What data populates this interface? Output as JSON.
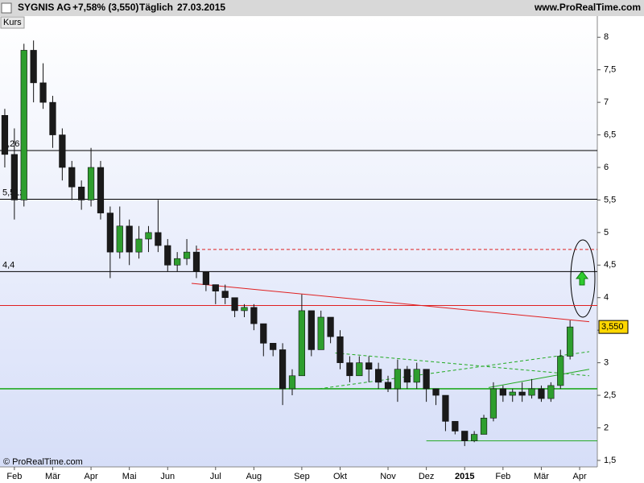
{
  "chart_data": {
    "type": "candlestick",
    "title": "SYGNIS AG",
    "change": "+7,58% (3,550)",
    "period": "Täglich",
    "date": "27.03.2015",
    "source": "www.ProRealTime.com",
    "panel_label": "Kurs",
    "copyright": "© ProRealTime.com",
    "categories": [
      null,
      "Feb",
      null,
      null,
      null,
      "Mär",
      null,
      null,
      null,
      "Apr",
      null,
      null,
      null,
      "Mai",
      null,
      null,
      null,
      "Jun",
      null,
      null,
      null,
      null,
      "Jul",
      null,
      null,
      null,
      "Aug",
      null,
      null,
      null,
      null,
      "Sep",
      null,
      null,
      null,
      "Okt",
      null,
      null,
      null,
      null,
      "Nov",
      null,
      null,
      null,
      "Dez",
      null,
      null,
      null,
      "2015",
      null,
      null,
      null,
      "Feb",
      null,
      null,
      null,
      "Mär",
      null,
      null,
      null,
      "Apr"
    ],
    "open": [
      6.8,
      6.2,
      5.5,
      7.8,
      7.3,
      7.0,
      6.5,
      6.0,
      5.7,
      5.5,
      6.0,
      5.3,
      4.7,
      5.1,
      4.7,
      4.9,
      5.0,
      4.8,
      4.5,
      4.6,
      4.7,
      4.4,
      4.2,
      4.1,
      4.0,
      3.8,
      3.85,
      3.6,
      3.3,
      3.2,
      2.6,
      2.8,
      3.8,
      3.2,
      3.7,
      3.4,
      3.0,
      2.8,
      3.0,
      2.9,
      2.7,
      2.6,
      2.9,
      2.7,
      2.9,
      2.6,
      2.5,
      2.1,
      1.95,
      1.8,
      1.9,
      2.15,
      2.6,
      2.5,
      2.55,
      2.5,
      2.6,
      2.45,
      2.65,
      3.1,
      null
    ],
    "high": [
      6.9,
      6.6,
      7.9,
      7.95,
      7.6,
      7.1,
      6.6,
      6.1,
      5.8,
      6.3,
      6.1,
      5.4,
      5.4,
      5.2,
      5.1,
      5.1,
      5.5,
      4.9,
      4.7,
      4.9,
      4.8,
      4.4,
      4.2,
      4.2,
      4.0,
      3.9,
      3.9,
      3.6,
      3.3,
      3.3,
      2.9,
      4.05,
      3.8,
      3.8,
      3.7,
      3.5,
      3.1,
      3.1,
      3.1,
      3.0,
      2.8,
      3.05,
      2.95,
      3.0,
      2.9,
      2.6,
      2.5,
      2.1,
      1.95,
      1.95,
      2.2,
      2.7,
      2.65,
      2.6,
      2.7,
      2.75,
      2.65,
      2.7,
      3.2,
      3.65,
      null
    ],
    "low": [
      6.0,
      5.2,
      5.4,
      7.0,
      6.9,
      6.3,
      5.8,
      5.5,
      5.35,
      5.4,
      5.2,
      4.3,
      4.6,
      4.5,
      4.6,
      4.7,
      4.7,
      4.4,
      4.4,
      4.5,
      4.3,
      4.1,
      3.9,
      3.9,
      3.7,
      3.7,
      3.5,
      3.1,
      3.1,
      2.35,
      2.5,
      2.8,
      3.1,
      3.2,
      3.3,
      2.9,
      2.7,
      2.8,
      2.7,
      2.6,
      2.55,
      2.4,
      2.6,
      2.6,
      2.4,
      2.35,
      1.95,
      1.9,
      1.72,
      1.78,
      1.9,
      2.1,
      2.4,
      2.4,
      2.4,
      2.45,
      2.4,
      2.4,
      2.6,
      3.05,
      null
    ],
    "close": [
      6.2,
      5.5,
      7.8,
      7.3,
      7.0,
      6.5,
      6.0,
      5.7,
      5.5,
      6.0,
      5.3,
      4.7,
      5.1,
      4.7,
      4.9,
      5.0,
      4.8,
      4.5,
      4.6,
      4.7,
      4.4,
      4.2,
      4.1,
      4.0,
      3.8,
      3.85,
      3.6,
      3.3,
      3.2,
      2.6,
      2.8,
      3.8,
      3.2,
      3.7,
      3.4,
      3.0,
      2.8,
      3.0,
      2.9,
      2.7,
      2.6,
      2.9,
      2.7,
      2.9,
      2.6,
      2.5,
      2.1,
      1.95,
      1.8,
      1.9,
      2.15,
      2.6,
      2.5,
      2.55,
      2.5,
      2.6,
      2.45,
      2.65,
      3.1,
      3.55,
      null
    ],
    "up_color": "#2e9e2e",
    "down_color": "#1a1a1a",
    "ylim": [
      1.4,
      8.3
    ],
    "yticks": [
      {
        "value": 1.5,
        "label": "1,5"
      },
      2,
      {
        "value": 2.5,
        "label": "2,5"
      },
      3,
      {
        "value": 3.5,
        "label": "3,5"
      },
      4,
      {
        "value": 4.5,
        "label": "4,5"
      },
      5,
      {
        "value": 5.5,
        "label": "5,5"
      },
      6,
      {
        "value": 6.5,
        "label": "6,5"
      },
      7,
      {
        "value": 7.5,
        "label": "7,5"
      },
      8
    ],
    "levels": [
      {
        "value": 6.26,
        "label": "6,26",
        "color": "#000000"
      },
      {
        "value": 5.512,
        "label": "5,512",
        "color": "#000000"
      },
      {
        "value": 4.4,
        "label": "4,4",
        "color": "#000000"
      },
      {
        "value": 3.88,
        "color": "#e02020"
      },
      {
        "value": 2.6,
        "color": "#22aa22"
      },
      {
        "value": 4.74,
        "color": "#e02020",
        "dashed": true,
        "from": 20
      },
      {
        "value": 1.8,
        "color": "#22aa22",
        "from": 44
      }
    ],
    "trendlines": [
      {
        "color": "#e02020",
        "x": [
          19.5,
          61
        ],
        "y": [
          4.22,
          3.63
        ]
      },
      {
        "color": "#22aa22",
        "dashed": true,
        "x": [
          34.5,
          61
        ],
        "y": [
          3.15,
          2.8
        ]
      },
      {
        "color": "#22aa22",
        "dashed": true,
        "x": [
          32.8,
          61
        ],
        "y": [
          2.6,
          3.17
        ]
      },
      {
        "color": "#22aa22",
        "x": [
          50.5,
          61
        ],
        "y": [
          2.62,
          2.9
        ]
      }
    ],
    "price_tag": {
      "value": 3.55,
      "label": "3,550"
    }
  }
}
